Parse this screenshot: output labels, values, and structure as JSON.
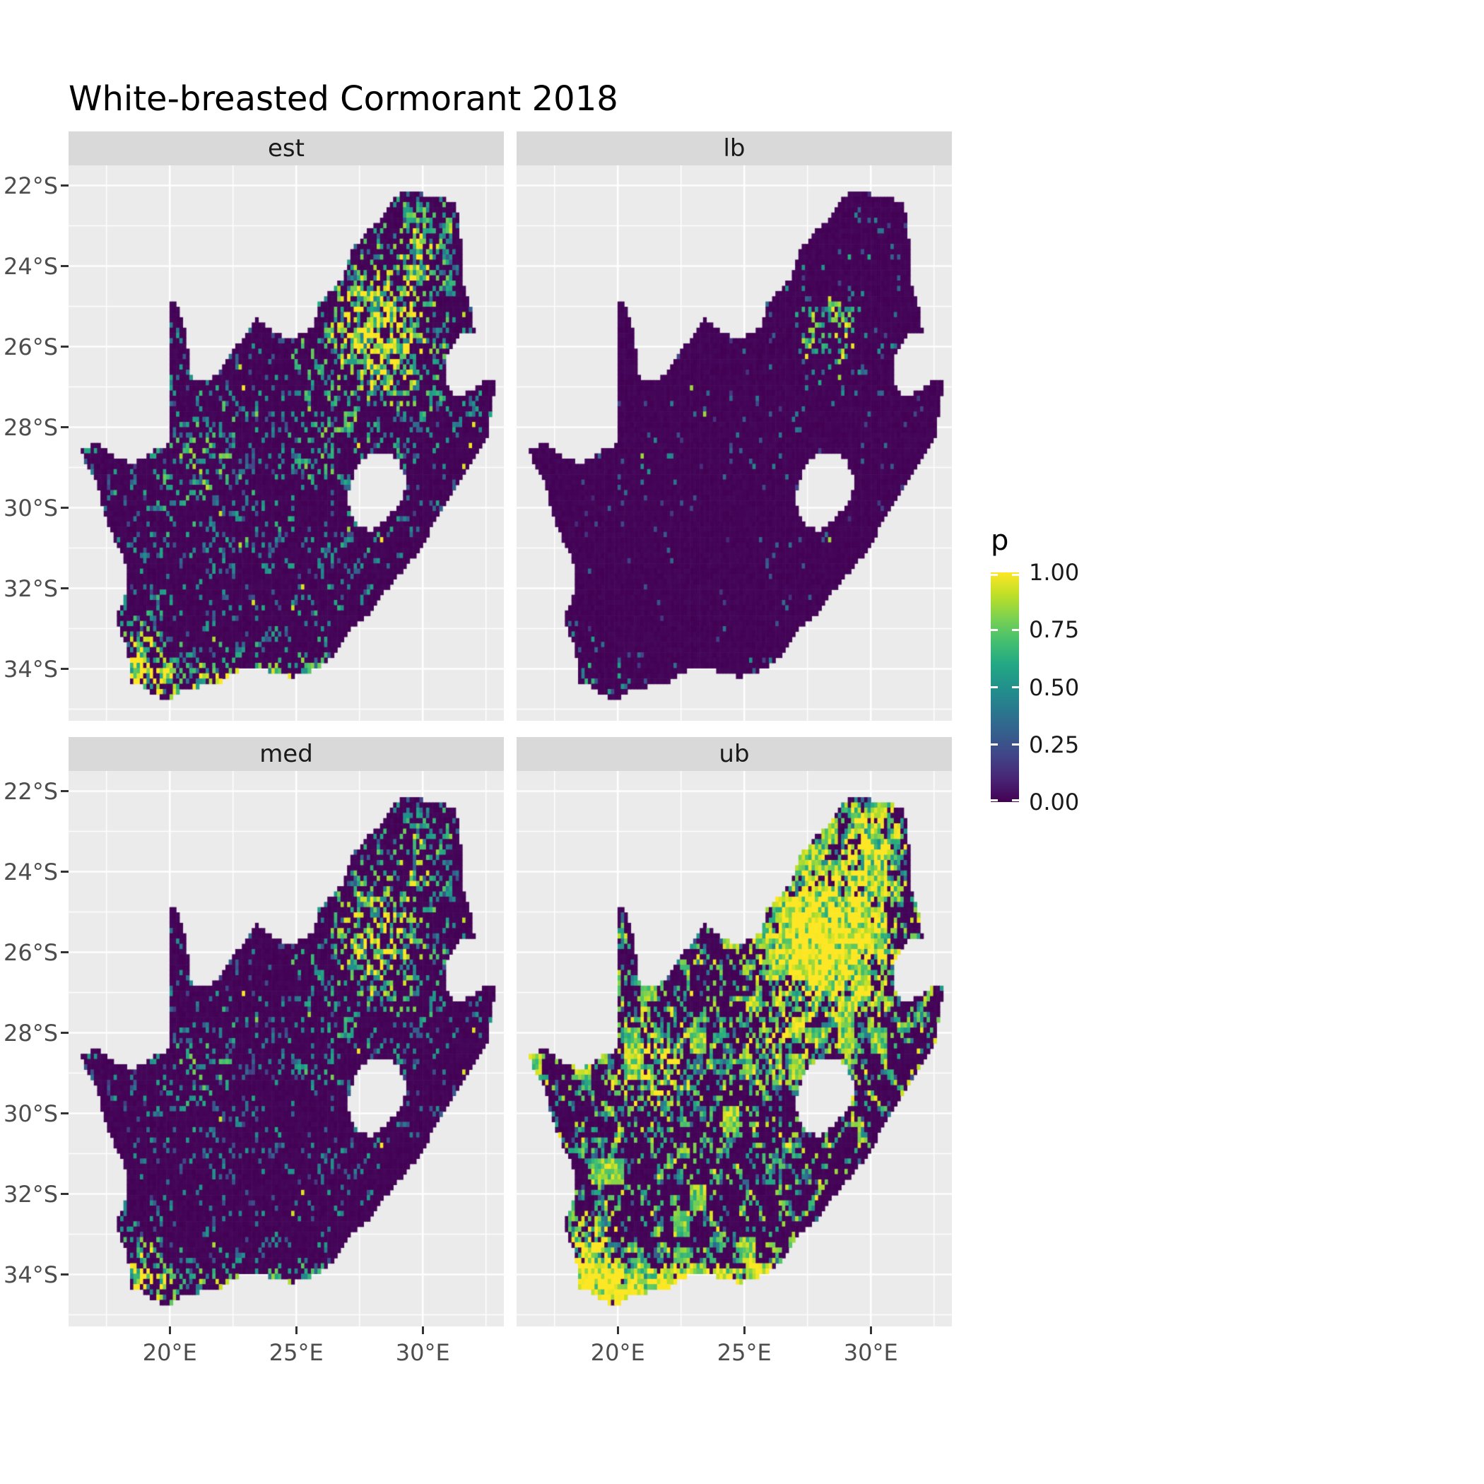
{
  "title": "White-breasted Cormorant 2018",
  "facets": [
    {
      "id": "est",
      "label": "est"
    },
    {
      "id": "lb",
      "label": "lb"
    },
    {
      "id": "med",
      "label": "med"
    },
    {
      "id": "ub",
      "label": "ub"
    }
  ],
  "axes": {
    "x_tick_labels": [
      "20°E",
      "25°E",
      "30°E"
    ],
    "x_tick_values": [
      20,
      25,
      30
    ],
    "y_tick_labels": [
      "22°S",
      "24°S",
      "26°S",
      "28°S",
      "30°S",
      "32°S",
      "34°S"
    ],
    "y_tick_values": [
      -22,
      -24,
      -26,
      -28,
      -30,
      -32,
      -34
    ]
  },
  "legend": {
    "title": "p",
    "labels": [
      "1.00",
      "0.75",
      "0.50",
      "0.25",
      "0.00"
    ],
    "values": [
      1.0,
      0.75,
      0.5,
      0.25,
      0.0
    ]
  },
  "colors": {
    "panel_bg": "#EBEBEB",
    "strip_bg": "#D9D9D9",
    "grid": "#FFFFFF",
    "axis_text": "#4D4D4D",
    "tick_mark": "#333333",
    "title_text": "#000000",
    "viridis_stops": [
      "#440154",
      "#482475",
      "#414487",
      "#355F8D",
      "#2A788E",
      "#21918C",
      "#22A884",
      "#44BF70",
      "#7AD151",
      "#BDDF26",
      "#FDE725"
    ]
  },
  "chart_data": {
    "type": "heatmap",
    "subtype": "faceted-raster-map",
    "title": "White-breasted Cormorant 2018",
    "region": "South Africa",
    "facets": [
      "est",
      "lb",
      "med",
      "ub"
    ],
    "value_variable": "p",
    "value_range": [
      0,
      1
    ],
    "legend_breaks": [
      0,
      0.25,
      0.5,
      0.75,
      1.0
    ],
    "x_axis_range_deg_east": [
      16.0,
      33.2
    ],
    "y_axis_range_deg_south": [
      21.5,
      35.3
    ],
    "facet_descriptions": {
      "est": "Estimated reporting probability: mostly near 0 (dark purple) with scattered mid/high cells; dense bright cluster ~26.5-31E, 23-27S (Gauteng/Bushveld), curvy teal features in Northern Cape and bright cells along the southern coast",
      "lb": "Lower bound: almost entirely near 0; very sparse teal/yellow cells with a small bright cluster near 28E, 26S",
      "med": "Median: similar spatial pattern to est with slightly fewer and dimmer bright cells",
      "ub": "Upper bound: extensive yellow/green; near-solid bright blob in the northeast, many yellow clumps and line features across the west and along the coasts, interior plateau still mostly dark"
    },
    "south_africa_outline": [
      [
        16.45,
        -28.58
      ],
      [
        17.1,
        -28.36
      ],
      [
        17.4,
        -28.5
      ],
      [
        17.95,
        -28.78
      ],
      [
        18.55,
        -28.88
      ],
      [
        19.0,
        -28.73
      ],
      [
        19.55,
        -28.5
      ],
      [
        19.99,
        -28.43
      ],
      [
        19.99,
        -24.77
      ],
      [
        20.38,
        -25.1
      ],
      [
        20.6,
        -25.65
      ],
      [
        20.78,
        -26.25
      ],
      [
        20.85,
        -26.8
      ],
      [
        21.45,
        -26.85
      ],
      [
        21.95,
        -26.66
      ],
      [
        22.4,
        -26.15
      ],
      [
        22.85,
        -25.85
      ],
      [
        23.45,
        -25.3
      ],
      [
        24.05,
        -25.65
      ],
      [
        24.8,
        -25.8
      ],
      [
        25.4,
        -25.6
      ],
      [
        25.68,
        -25.45
      ],
      [
        25.92,
        -24.9
      ],
      [
        26.4,
        -24.62
      ],
      [
        26.9,
        -24.25
      ],
      [
        27.2,
        -23.6
      ],
      [
        27.8,
        -23.15
      ],
      [
        28.3,
        -22.9
      ],
      [
        29.05,
        -22.2
      ],
      [
        29.5,
        -22.14
      ],
      [
        29.95,
        -22.2
      ],
      [
        30.6,
        -22.3
      ],
      [
        31.3,
        -22.4
      ],
      [
        31.55,
        -23.5
      ],
      [
        31.56,
        -24.4
      ],
      [
        31.95,
        -25.1
      ],
      [
        32.02,
        -25.6
      ],
      [
        31.35,
        -25.75
      ],
      [
        30.85,
        -26.25
      ],
      [
        30.9,
        -26.95
      ],
      [
        31.35,
        -27.25
      ],
      [
        31.97,
        -27.05
      ],
      [
        32.35,
        -26.86
      ],
      [
        32.89,
        -26.86
      ],
      [
        32.55,
        -28.2
      ],
      [
        32.05,
        -28.8
      ],
      [
        31.35,
        -29.4
      ],
      [
        30.65,
        -30.1
      ],
      [
        30.0,
        -30.95
      ],
      [
        29.3,
        -31.5
      ],
      [
        28.55,
        -32.05
      ],
      [
        27.9,
        -32.6
      ],
      [
        27.05,
        -33.05
      ],
      [
        26.45,
        -33.7
      ],
      [
        25.65,
        -34.02
      ],
      [
        24.85,
        -34.2
      ],
      [
        23.6,
        -33.99
      ],
      [
        22.55,
        -34.06
      ],
      [
        21.8,
        -34.4
      ],
      [
        20.5,
        -34.47
      ],
      [
        20.0,
        -34.82
      ],
      [
        19.35,
        -34.62
      ],
      [
        18.85,
        -34.4
      ],
      [
        18.4,
        -34.3
      ],
      [
        18.45,
        -33.92
      ],
      [
        18.25,
        -33.4
      ],
      [
        17.85,
        -32.78
      ],
      [
        18.3,
        -32.05
      ],
      [
        18.28,
        -31.4
      ],
      [
        17.6,
        -30.5
      ],
      [
        17.05,
        -29.3
      ],
      [
        16.72,
        -28.95
      ]
    ],
    "lesotho_hole": [
      [
        27.0,
        -29.65
      ],
      [
        27.35,
        -28.95
      ],
      [
        27.75,
        -28.7
      ],
      [
        28.35,
        -28.6
      ],
      [
        28.95,
        -28.75
      ],
      [
        29.4,
        -29.3
      ],
      [
        29.15,
        -29.8
      ],
      [
        28.6,
        -30.28
      ],
      [
        27.95,
        -30.62
      ],
      [
        27.42,
        -30.4
      ],
      [
        27.08,
        -30.02
      ]
    ]
  }
}
